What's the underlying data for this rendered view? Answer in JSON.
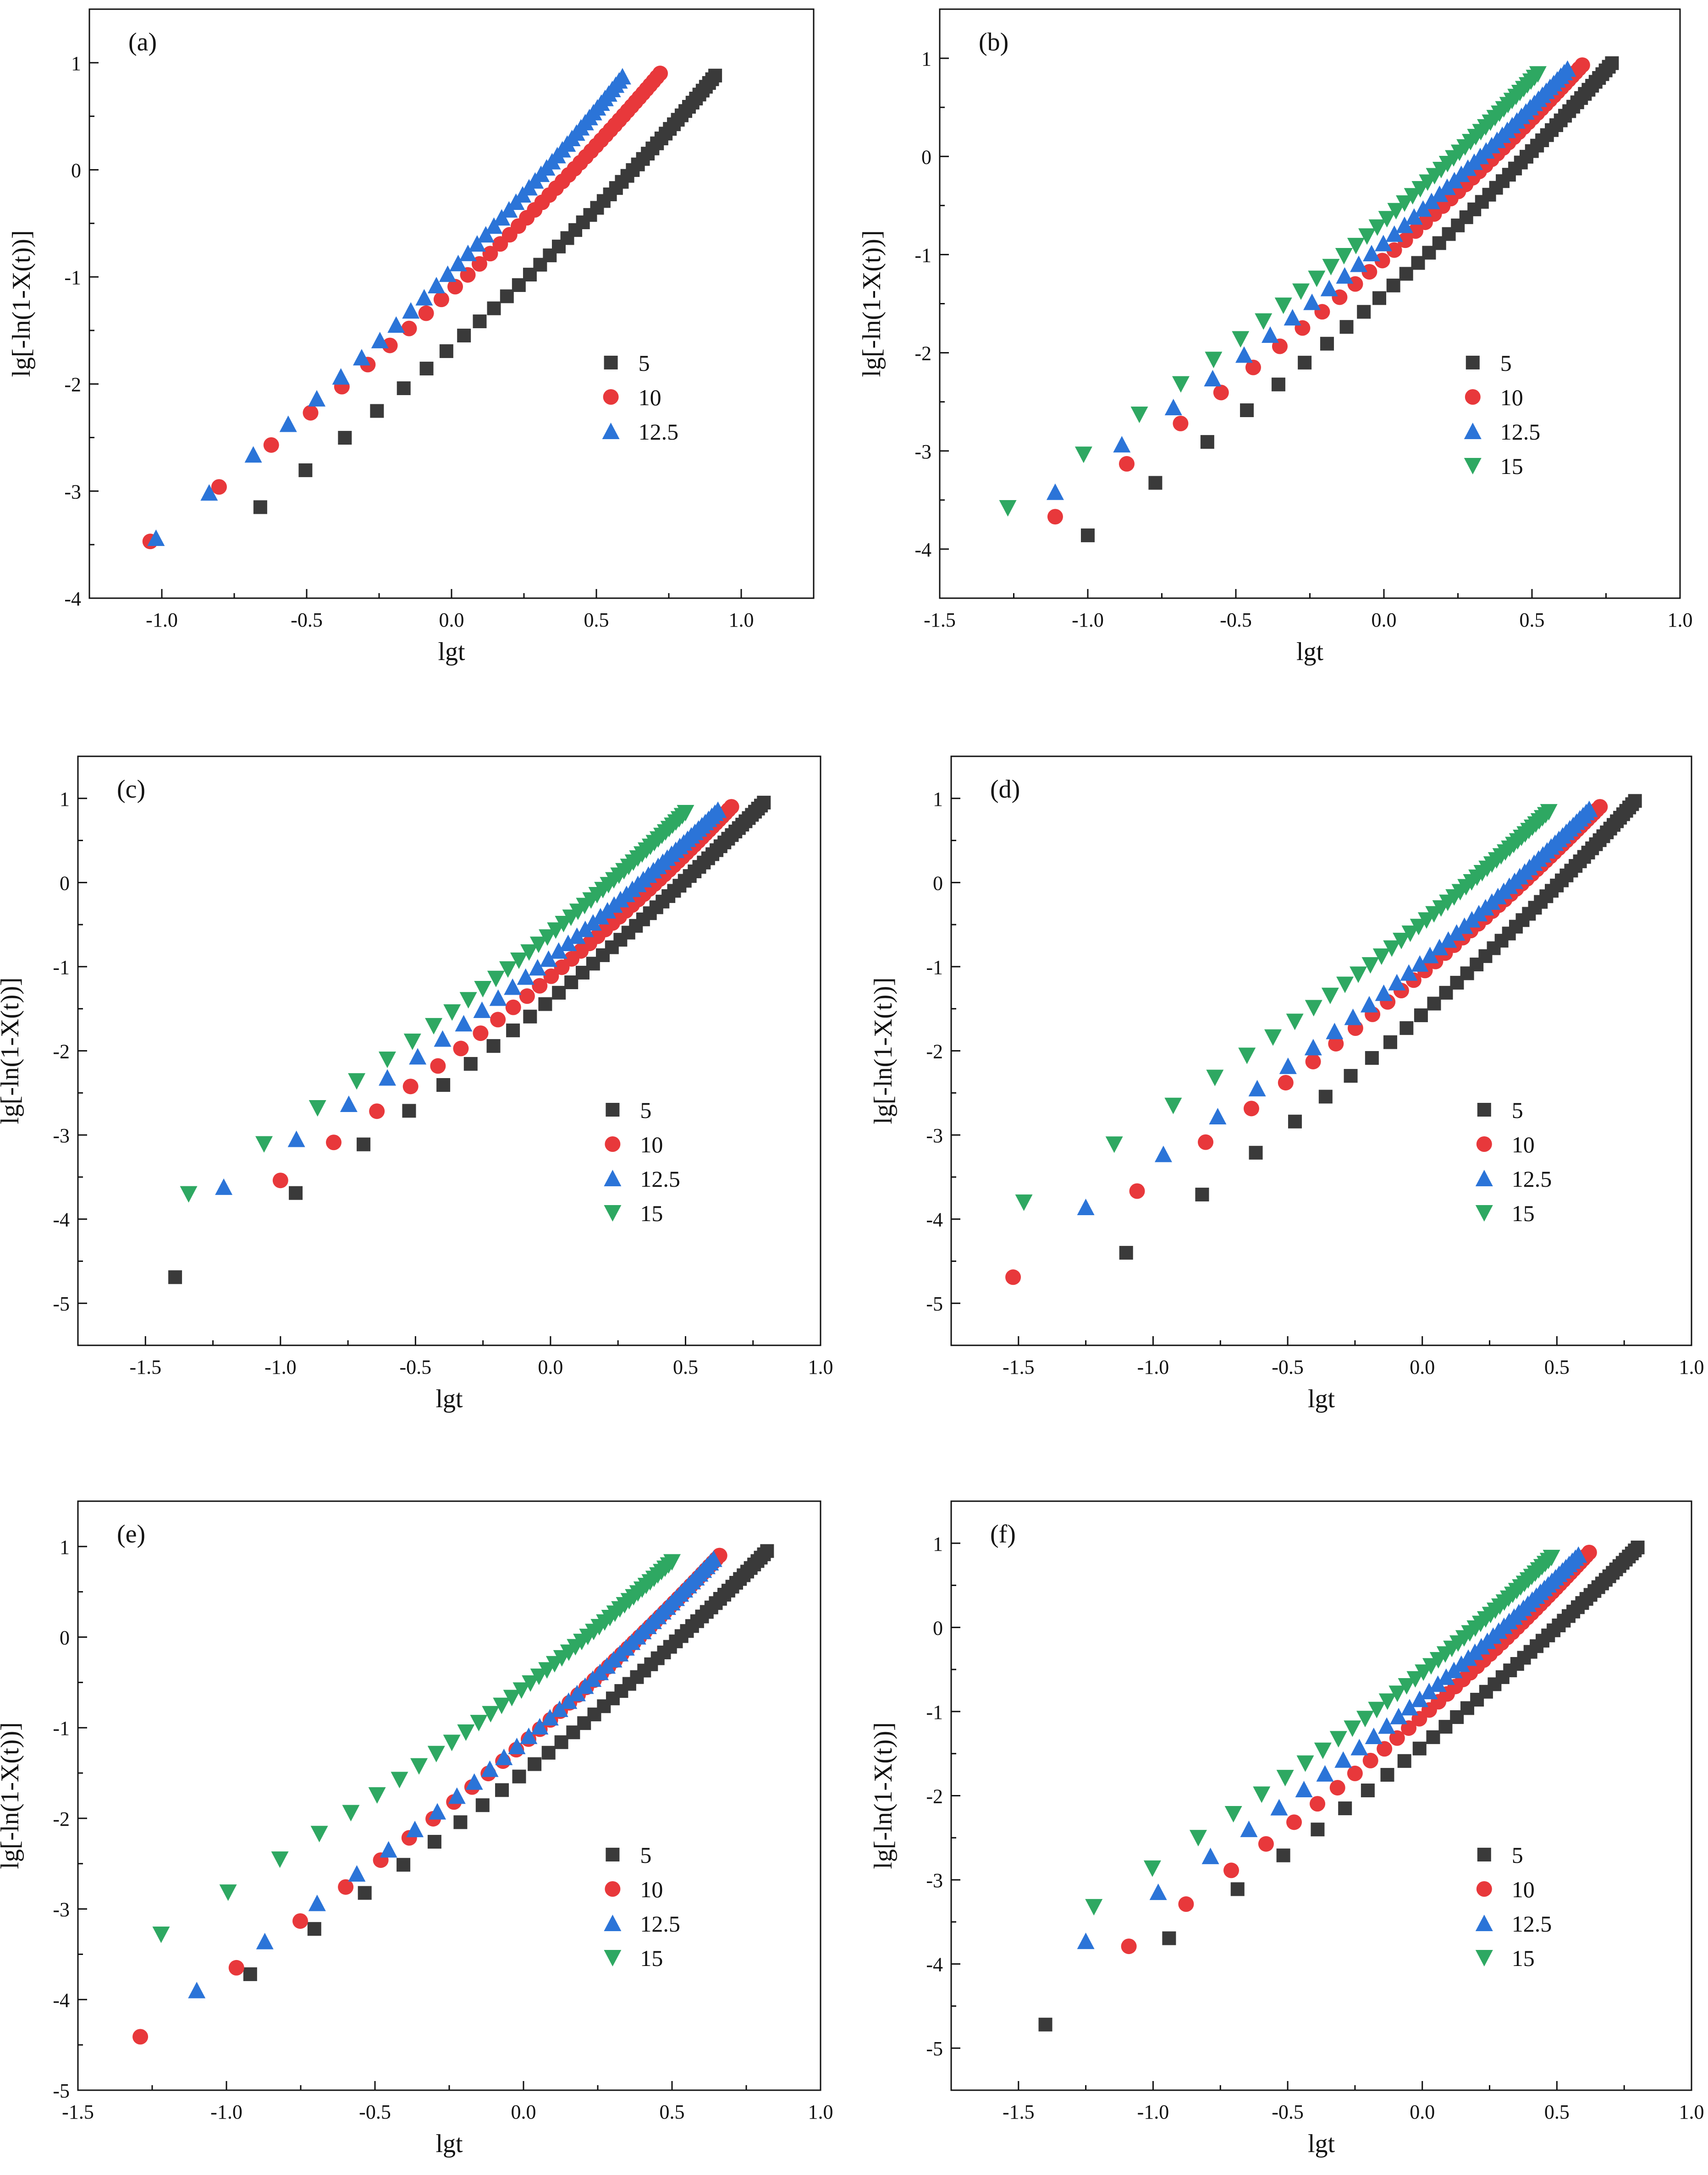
{
  "figure": {
    "xlabel": "lgt",
    "ylabel": "lg[-ln(1-X(t))]",
    "colors": {
      "5": "#3a3a3a",
      "10": "#e8383b",
      "12.5": "#2b74d8",
      "15": "#2ea862"
    }
  },
  "chart_data": [
    {
      "type": "scatter",
      "panel_label": "(a)",
      "xlim": [
        -1.25,
        1.25
      ],
      "ylim": [
        -4,
        1.5
      ],
      "xticks": [
        -1.0,
        -0.5,
        0.0,
        0.5,
        1.0
      ],
      "xtick_labels": [
        "-1.0",
        "-0.5",
        "0.0",
        "0.5",
        "1.0"
      ],
      "yticks": [
        -4,
        -3,
        -2,
        -1,
        0,
        1
      ],
      "ytick_labels": [
        "-4",
        "-3",
        "-2",
        "-1",
        "0",
        "1"
      ],
      "series": [
        {
          "name": "5",
          "marker": "square",
          "x0": -0.66,
          "x1": 0.91,
          "y0": -3.15,
          "y1": 0.88,
          "n": 48
        },
        {
          "name": "10",
          "marker": "circle",
          "x0": -1.04,
          "x1": 0.72,
          "y0": -3.47,
          "y1": 0.9,
          "n": 45
        },
        {
          "name": "12.5",
          "marker": "triangle-up",
          "x0": -1.02,
          "x1": 0.59,
          "y0": -3.44,
          "y1": 0.87,
          "n": 44
        }
      ]
    },
    {
      "type": "scatter",
      "panel_label": "(b)",
      "xlim": [
        -1.5,
        1.0
      ],
      "ylim": [
        -4.5,
        1.5
      ],
      "xticks": [
        -1.5,
        -1.0,
        -0.5,
        0.0,
        0.5,
        1.0
      ],
      "xtick_labels": [
        "-1.5",
        "-1.0",
        "-0.5",
        "0.0",
        "0.5",
        "1.0"
      ],
      "yticks": [
        -4,
        -3,
        -2,
        -1,
        0,
        1
      ],
      "ytick_labels": [
        "-4",
        "-3",
        "-2",
        "-1",
        "0",
        "1"
      ],
      "series": [
        {
          "name": "5",
          "marker": "square",
          "x0": -1.0,
          "x1": 0.77,
          "y0": -3.86,
          "y1": 0.95,
          "n": 48
        },
        {
          "name": "10",
          "marker": "circle",
          "x0": -1.11,
          "x1": 0.67,
          "y0": -3.67,
          "y1": 0.93,
          "n": 46
        },
        {
          "name": "12.5",
          "marker": "triangle-up",
          "x0": -1.11,
          "x1": 0.62,
          "y0": -3.42,
          "y1": 0.89,
          "n": 45
        },
        {
          "name": "15",
          "marker": "triangle-down",
          "x0": -1.27,
          "x1": 0.52,
          "y0": -3.58,
          "y1": 0.84,
          "n": 44
        }
      ]
    },
    {
      "type": "scatter",
      "panel_label": "(c)",
      "xlim": [
        -1.75,
        1.0
      ],
      "ylim": [
        -5.5,
        1.5
      ],
      "xticks": [
        -1.5,
        -1.0,
        -0.5,
        0.0,
        0.5,
        1.0
      ],
      "xtick_labels": [
        "-1.5",
        "-1.0",
        "-0.5",
        "0.0",
        "0.5",
        "1.0"
      ],
      "yticks": [
        -5,
        -4,
        -3,
        -2,
        -1,
        0,
        1
      ],
      "ytick_labels": [
        "-5",
        "-4",
        "-3",
        "-2",
        "-1",
        "0",
        "1"
      ],
      "series": [
        {
          "name": "5",
          "marker": "square",
          "x0": -1.39,
          "x1": 0.79,
          "y0": -4.69,
          "y1": 0.95,
          "n": 48
        },
        {
          "name": "10",
          "marker": "circle",
          "x0": -1.0,
          "x1": 0.67,
          "y0": -3.54,
          "y1": 0.9,
          "n": 46
        },
        {
          "name": "12.5",
          "marker": "triangle-up",
          "x0": -1.21,
          "x1": 0.62,
          "y0": -3.62,
          "y1": 0.86,
          "n": 45
        },
        {
          "name": "15",
          "marker": "triangle-down",
          "x0": -1.34,
          "x1": 0.5,
          "y0": -3.7,
          "y1": 0.83,
          "n": 44
        }
      ]
    },
    {
      "type": "scatter",
      "panel_label": "(d)",
      "xlim": [
        -1.75,
        1.0
      ],
      "ylim": [
        -5.5,
        1.5
      ],
      "xticks": [
        -1.5,
        -1.0,
        -0.5,
        0.0,
        0.5,
        1.0
      ],
      "xtick_labels": [
        "-1.5",
        "-1.0",
        "-0.5",
        "0.0",
        "0.5",
        "1.0"
      ],
      "yticks": [
        -5,
        -4,
        -3,
        -2,
        -1,
        0,
        1
      ],
      "ytick_labels": [
        "-5",
        "-4",
        "-3",
        "-2",
        "-1",
        "0",
        "1"
      ],
      "series": [
        {
          "name": "5",
          "marker": "square",
          "x0": -1.1,
          "x1": 0.79,
          "y0": -4.4,
          "y1": 0.97,
          "n": 48
        },
        {
          "name": "10",
          "marker": "circle",
          "x0": -1.52,
          "x1": 0.66,
          "y0": -4.69,
          "y1": 0.9,
          "n": 46
        },
        {
          "name": "12.5",
          "marker": "triangle-up",
          "x0": -1.25,
          "x1": 0.62,
          "y0": -3.86,
          "y1": 0.87,
          "n": 45
        },
        {
          "name": "15",
          "marker": "triangle-down",
          "x0": -1.48,
          "x1": 0.47,
          "y0": -3.8,
          "y1": 0.84,
          "n": 44
        }
      ]
    },
    {
      "type": "scatter",
      "panel_label": "(e)",
      "xlim": [
        -1.5,
        1.0
      ],
      "ylim": [
        -5.0,
        1.5
      ],
      "xticks": [
        -1.5,
        -1.0,
        -0.5,
        0.0,
        0.5,
        1.0
      ],
      "xtick_labels": [
        "-1.5",
        "-1.0",
        "-0.5",
        "0.0",
        "0.5",
        "1.0"
      ],
      "yticks": [
        -5,
        -4,
        -3,
        -2,
        -1,
        0,
        1
      ],
      "ytick_labels": [
        "-5",
        "-4",
        "-3",
        "-2",
        "-1",
        "0",
        "1"
      ],
      "series": [
        {
          "name": "5",
          "marker": "square",
          "x0": -0.92,
          "x1": 0.82,
          "y0": -3.72,
          "y1": 0.95,
          "n": 48
        },
        {
          "name": "10",
          "marker": "circle",
          "x0": -1.29,
          "x1": 0.66,
          "y0": -4.41,
          "y1": 0.9,
          "n": 46
        },
        {
          "name": "12.5",
          "marker": "triangle-up",
          "x0": -1.1,
          "x1": 0.64,
          "y0": -3.9,
          "y1": 0.86,
          "n": 45
        },
        {
          "name": "15",
          "marker": "triangle-down",
          "x0": -1.22,
          "x1": 0.5,
          "y0": -3.28,
          "y1": 0.83,
          "n": 44
        }
      ]
    },
    {
      "type": "scatter",
      "panel_label": "(f)",
      "xlim": [
        -1.75,
        1.0
      ],
      "ylim": [
        -5.5,
        1.5
      ],
      "xticks": [
        -1.5,
        -1.0,
        -0.5,
        0.0,
        0.5,
        1.0
      ],
      "xtick_labels": [
        "-1.5",
        "-1.0",
        "-0.5",
        "0.0",
        "0.5",
        "1.0"
      ],
      "yticks": [
        -5,
        -4,
        -3,
        -2,
        -1,
        0,
        1
      ],
      "ytick_labels": [
        "-5",
        "-4",
        "-3",
        "-2",
        "-1",
        "0",
        "1"
      ],
      "series": [
        {
          "name": "5",
          "marker": "square",
          "x0": -1.4,
          "x1": 0.8,
          "y0": -4.72,
          "y1": 0.95,
          "n": 48
        },
        {
          "name": "10",
          "marker": "circle",
          "x0": -1.09,
          "x1": 0.62,
          "y0": -3.79,
          "y1": 0.89,
          "n": 46
        },
        {
          "name": "12.5",
          "marker": "triangle-up",
          "x0": -1.25,
          "x1": 0.58,
          "y0": -3.73,
          "y1": 0.86,
          "n": 45
        },
        {
          "name": "15",
          "marker": "triangle-down",
          "x0": -1.22,
          "x1": 0.48,
          "y0": -3.32,
          "y1": 0.83,
          "n": 44
        }
      ]
    }
  ]
}
